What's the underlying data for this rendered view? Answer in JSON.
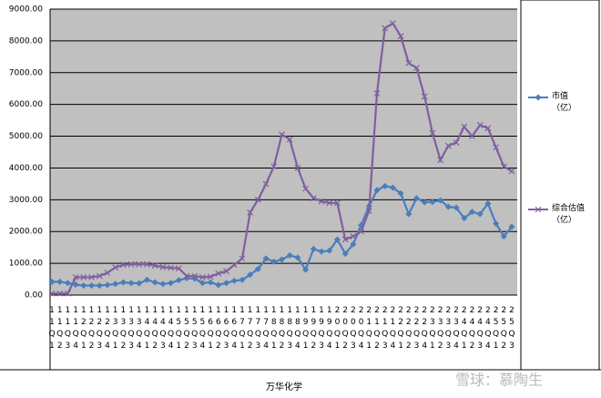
{
  "chart_data": {
    "type": "line",
    "title": "万华化学",
    "watermark": "雪球：慕陶生",
    "categories": [
      "11Q1",
      "11Q2",
      "11Q3",
      "11Q4",
      "12Q1",
      "12Q2",
      "12Q3",
      "12Q4",
      "13Q1",
      "13Q2",
      "13Q3",
      "13Q4",
      "14Q1",
      "14Q2",
      "14Q3",
      "14Q4",
      "15Q1",
      "15Q2",
      "15Q3",
      "15Q4",
      "16Q1",
      "16Q2",
      "16Q3",
      "16Q4",
      "17Q1",
      "17Q2",
      "17Q3",
      "17Q4",
      "18Q1",
      "18Q2",
      "18Q3",
      "18Q4",
      "19Q1",
      "19Q2",
      "19Q3",
      "19Q4",
      "20Q1",
      "20Q2",
      "20Q3",
      "20Q4",
      "21Q1",
      "21Q2",
      "21Q3",
      "21Q4",
      "22Q1",
      "22Q2",
      "22Q3",
      "22Q4",
      "23Q1",
      "23Q2",
      "23Q3",
      "23Q4",
      "24Q1",
      "24Q2",
      "24Q3",
      "24Q4",
      "25Q1",
      "25Q2",
      "25Q3"
    ],
    "series": [
      {
        "name": "市值（亿）",
        "color": "#4a7ebb",
        "marker": "diamond",
        "values": [
          420,
          420,
          380,
          330,
          300,
          300,
          300,
          320,
          350,
          400,
          380,
          370,
          480,
          400,
          350,
          380,
          470,
          530,
          520,
          380,
          400,
          320,
          380,
          450,
          480,
          640,
          820,
          1150,
          1050,
          1120,
          1250,
          1180,
          800,
          1450,
          1370,
          1400,
          1750,
          1300,
          1600,
          2200,
          2800,
          3300,
          3430,
          3380,
          3200,
          2550,
          3050,
          2920,
          2930,
          2980,
          2780,
          2750,
          2420,
          2620,
          2550,
          2880,
          2250,
          1850,
          2150
        ]
      },
      {
        "name": "综合估值（亿）",
        "color": "#7f5fa0",
        "marker": "x",
        "values": [
          50,
          50,
          50,
          560,
          560,
          560,
          600,
          700,
          870,
          950,
          970,
          970,
          970,
          930,
          880,
          860,
          840,
          600,
          600,
          560,
          580,
          680,
          750,
          950,
          1150,
          2600,
          3000,
          3500,
          4050,
          5050,
          4900,
          4000,
          3350,
          3050,
          2950,
          2900,
          2900,
          1750,
          1850,
          2000,
          2650,
          6350,
          8400,
          8550,
          8150,
          7300,
          7150,
          6250,
          5100,
          4250,
          4700,
          4800,
          5300,
          5000,
          5350,
          5250,
          4650,
          4050,
          3900
        ]
      }
    ],
    "ylim": [
      0,
      9000
    ],
    "yticks": [
      {
        "value": 0,
        "label": "0.00"
      },
      {
        "value": 1000,
        "label": "1000.00"
      },
      {
        "value": 2000,
        "label": "2000.00"
      },
      {
        "value": 3000,
        "label": "3000.00"
      },
      {
        "value": 4000,
        "label": "4000.00"
      },
      {
        "value": 5000,
        "label": "5000.00"
      },
      {
        "value": 6000,
        "label": "6000.00"
      },
      {
        "value": 7000,
        "label": "7000.00"
      },
      {
        "value": 8000,
        "label": "8000.00"
      },
      {
        "value": 9000,
        "label": "9000.00"
      }
    ],
    "grid": true,
    "legend": "right",
    "background": "#c0c0c0"
  }
}
